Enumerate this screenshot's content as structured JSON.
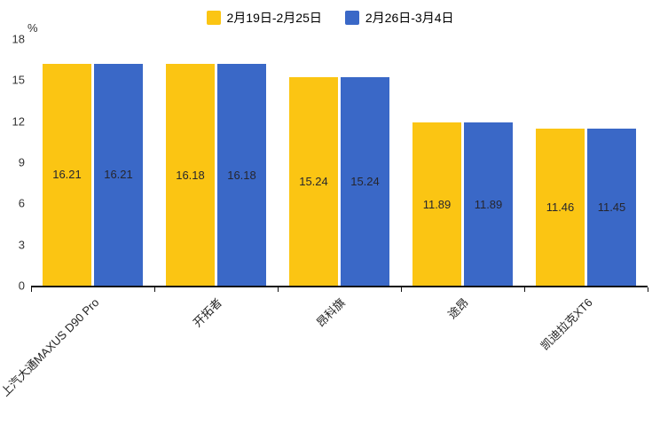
{
  "chart_data": {
    "type": "bar",
    "title": "",
    "categories": [
      "上汽大通MAXUS D90 Pro",
      "开拓者",
      "昂科旗",
      "途昂",
      "凯迪拉克XT6"
    ],
    "series": [
      {
        "name": "2月19日-2月25日",
        "color": "#FBC513",
        "values": [
          16.21,
          16.18,
          15.24,
          11.89,
          11.46
        ]
      },
      {
        "name": "2月26日-3月4日",
        "color": "#3A68C7",
        "values": [
          16.21,
          16.18,
          15.24,
          11.89,
          11.45
        ]
      }
    ],
    "ylabel": "%",
    "xlabel": "",
    "ylim": [
      0,
      18
    ],
    "yticks": [
      0,
      3,
      6,
      9,
      12,
      15,
      18
    ],
    "grid": false,
    "legend_position": "top",
    "value_label_decimals": 2
  }
}
